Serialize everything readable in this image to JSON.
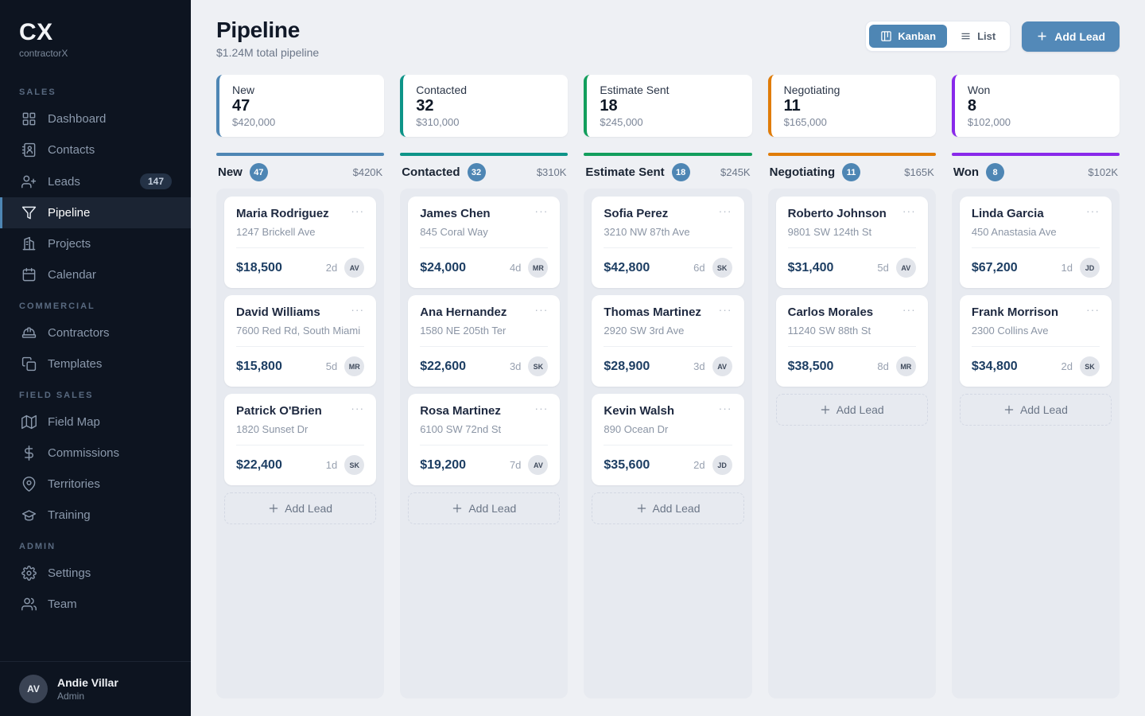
{
  "sidebar": {
    "logo": "CX",
    "brand": "contractorX",
    "sections": [
      {
        "label": "SALES",
        "items": [
          {
            "label": "Dashboard",
            "icon": "grid-icon"
          },
          {
            "label": "Contacts",
            "icon": "contacts-book-icon"
          },
          {
            "label": "Leads",
            "icon": "user-plus-icon",
            "badge": "147"
          },
          {
            "label": "Pipeline",
            "icon": "funnel-icon",
            "active": true
          },
          {
            "label": "Projects",
            "icon": "building-icon"
          },
          {
            "label": "Calendar",
            "icon": "calendar-icon"
          }
        ]
      },
      {
        "label": "COMMERCIAL",
        "items": [
          {
            "label": "Contractors",
            "icon": "hard-hat-icon"
          },
          {
            "label": "Templates",
            "icon": "copy-icon"
          }
        ]
      },
      {
        "label": "FIELD SALES",
        "items": [
          {
            "label": "Field Map",
            "icon": "map-icon"
          },
          {
            "label": "Commissions",
            "icon": "dollar-icon"
          },
          {
            "label": "Territories",
            "icon": "map-pin-icon"
          },
          {
            "label": "Training",
            "icon": "graduation-cap-icon"
          }
        ]
      },
      {
        "label": "ADMIN",
        "items": [
          {
            "label": "Settings",
            "icon": "gear-icon"
          },
          {
            "label": "Team",
            "icon": "users-icon"
          }
        ]
      }
    ],
    "user": {
      "initials": "AV",
      "name": "Andie Villar",
      "role": "Admin"
    }
  },
  "header": {
    "title": "Pipeline",
    "subtitle": "$1.24M total pipeline",
    "kanban_label": "Kanban",
    "list_label": "List",
    "add_lead_label": "Add Lead"
  },
  "accent_color": "#4e86b4",
  "summary_cards": [
    {
      "label": "New",
      "count": "47",
      "value": "$420,000",
      "color": "#4e86b4"
    },
    {
      "label": "Contacted",
      "count": "32",
      "value": "$310,000",
      "color": "#0d9488"
    },
    {
      "label": "Estimate Sent",
      "count": "18",
      "value": "$245,000",
      "color": "#129e5c"
    },
    {
      "label": "Negotiating",
      "count": "11",
      "value": "$165,000",
      "color": "#e07c08"
    },
    {
      "label": "Won",
      "count": "8",
      "value": "$102,000",
      "color": "#8929ea"
    }
  ],
  "board": {
    "add_lead_label": "Add Lead",
    "columns": [
      {
        "name": "New",
        "count": "47",
        "total": "$420K",
        "color": "#4e86b4",
        "cards": [
          {
            "name": "Maria Rodriguez",
            "address": "1247 Brickell Ave",
            "value": "$18,500",
            "age": "2d",
            "owner": "AV"
          },
          {
            "name": "David Williams",
            "address": "7600 Red Rd, South Miami",
            "value": "$15,800",
            "age": "5d",
            "owner": "MR"
          },
          {
            "name": "Patrick O'Brien",
            "address": "1820 Sunset Dr",
            "value": "$22,400",
            "age": "1d",
            "owner": "SK"
          }
        ]
      },
      {
        "name": "Contacted",
        "count": "32",
        "total": "$310K",
        "color": "#0d9488",
        "cards": [
          {
            "name": "James Chen",
            "address": "845 Coral Way",
            "value": "$24,000",
            "age": "4d",
            "owner": "MR"
          },
          {
            "name": "Ana Hernandez",
            "address": "1580 NE 205th Ter",
            "value": "$22,600",
            "age": "3d",
            "owner": "SK"
          },
          {
            "name": "Rosa Martinez",
            "address": "6100 SW 72nd St",
            "value": "$19,200",
            "age": "7d",
            "owner": "AV"
          }
        ]
      },
      {
        "name": "Estimate Sent",
        "count": "18",
        "total": "$245K",
        "color": "#129e5c",
        "cards": [
          {
            "name": "Sofia Perez",
            "address": "3210 NW 87th Ave",
            "value": "$42,800",
            "age": "6d",
            "owner": "SK"
          },
          {
            "name": "Thomas Martinez",
            "address": "2920 SW 3rd Ave",
            "value": "$28,900",
            "age": "3d",
            "owner": "AV"
          },
          {
            "name": "Kevin Walsh",
            "address": "890 Ocean Dr",
            "value": "$35,600",
            "age": "2d",
            "owner": "JD"
          }
        ]
      },
      {
        "name": "Negotiating",
        "count": "11",
        "total": "$165K",
        "color": "#e07c08",
        "cards": [
          {
            "name": "Roberto Johnson",
            "address": "9801 SW 124th St",
            "value": "$31,400",
            "age": "5d",
            "owner": "AV"
          },
          {
            "name": "Carlos Morales",
            "address": "11240 SW 88th St",
            "value": "$38,500",
            "age": "8d",
            "owner": "MR"
          }
        ]
      },
      {
        "name": "Won",
        "count": "8",
        "total": "$102K",
        "color": "#8929ea",
        "cards": [
          {
            "name": "Linda Garcia",
            "address": "450 Anastasia Ave",
            "value": "$67,200",
            "age": "1d",
            "owner": "JD"
          },
          {
            "name": "Frank Morrison",
            "address": "2300 Collins Ave",
            "value": "$34,800",
            "age": "2d",
            "owner": "SK"
          }
        ]
      }
    ]
  }
}
